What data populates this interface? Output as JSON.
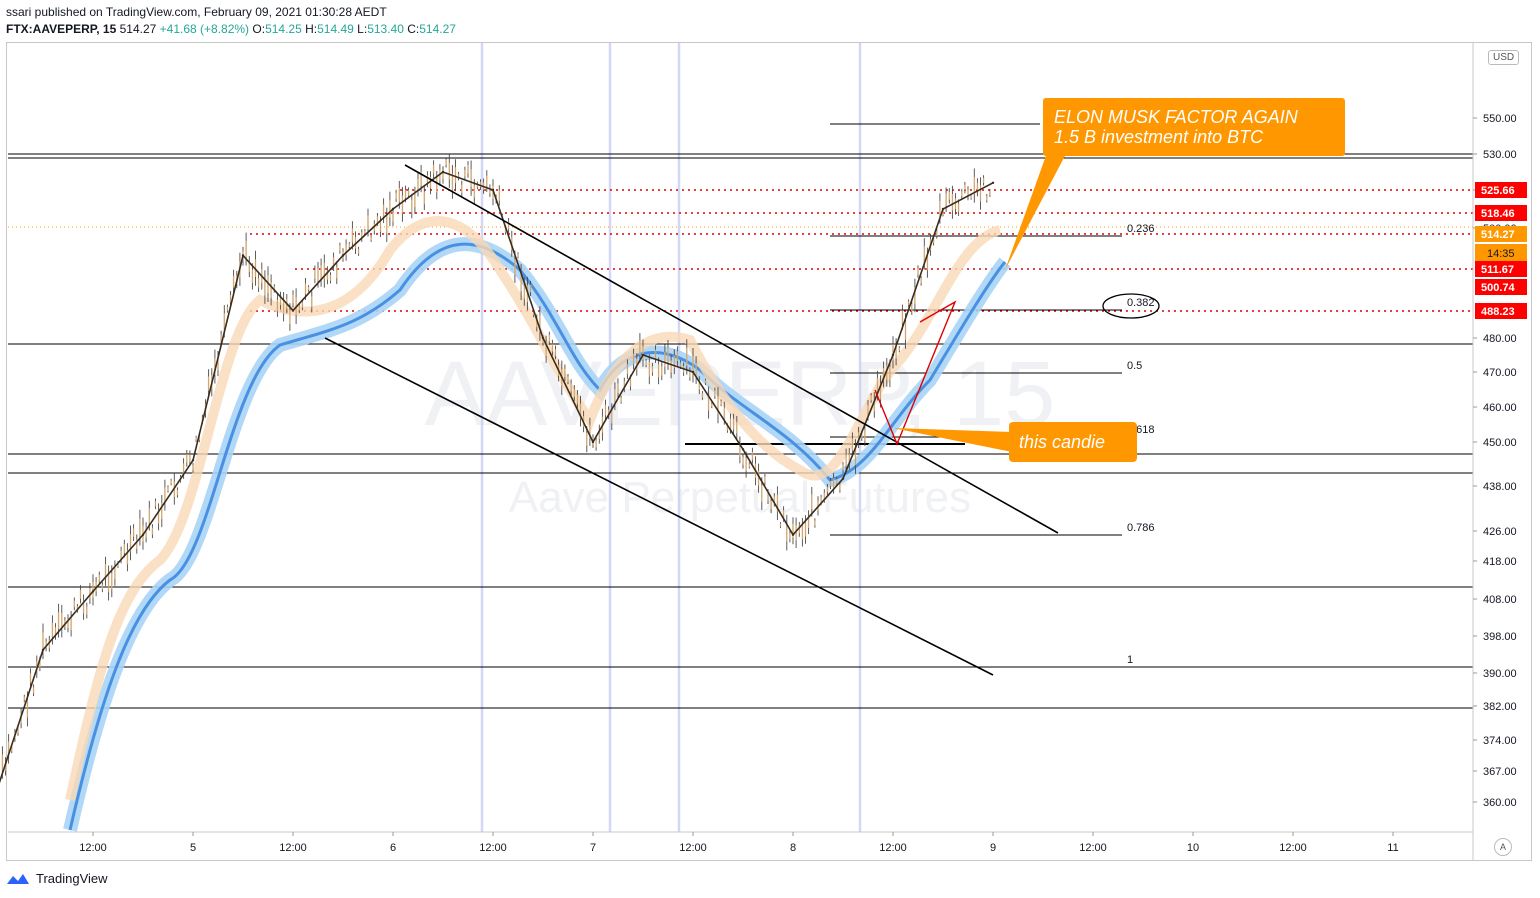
{
  "header": {
    "publisher": "ssari published on TradingView.com, February 09, 2021 01:30:28 AEDT",
    "symbol": "FTX:AAVEPERP, 15",
    "last": "514.27",
    "change": "+41.68 (+8.82%)",
    "o_label": "O:",
    "o": "514.25",
    "h_label": "H:",
    "h": "514.49",
    "l_label": "L:",
    "l": "513.40",
    "c_label": "C:",
    "c": "514.27"
  },
  "watermark": {
    "symbol": "AAVEPERP, 15",
    "name": "Aave Perpetual Futures"
  },
  "currency": "USD",
  "auto_label": "A",
  "footer": {
    "brand": "TradingView"
  },
  "chart_data": {
    "type": "line",
    "title": "FTX:AAVEPERP, 15",
    "x_ticks": [
      "12:00",
      "5",
      "12:00",
      "6",
      "12:00",
      "7",
      "12:00",
      "8",
      "12:00",
      "9",
      "12:00",
      "10",
      "12:00",
      "11"
    ],
    "y_ticks": [
      550,
      530,
      510,
      500,
      480,
      470,
      460,
      450,
      438,
      426,
      418,
      408,
      398,
      390,
      382,
      374,
      367,
      360
    ],
    "ylim": [
      354,
      560
    ],
    "series": [
      {
        "name": "",
        "color": "#000000",
        "x": [
          "4 00:00",
          "4 06:00",
          "4 12:00",
          "4 18:00",
          "5 00:00",
          "5 06:00",
          "5 12:00",
          "5 18:00",
          "6 00:00",
          "6 06:00",
          "6 12:00",
          "6 18:00",
          "7 00:00",
          "7 06:00",
          "7 12:00",
          "7 18:00",
          "8 00:00",
          "8 06:00",
          "8 12:00",
          "8 18:00",
          "9 00:00"
        ],
        "values": [
          360,
          395,
          410,
          425,
          445,
          495,
          485,
          495,
          505,
          520,
          510,
          480,
          450,
          475,
          470,
          448,
          425,
          440,
          475,
          505,
          514
        ]
      }
    ],
    "horizontal_price_tags": [
      {
        "price": 525.66,
        "label": "525.66",
        "color": "#ff0000"
      },
      {
        "price": 518.46,
        "label": "518.46",
        "color": "#ff0000"
      },
      {
        "price": 514.27,
        "label": "514.27",
        "color": "#ff9800"
      },
      {
        "price": 511.67,
        "label": "511.67",
        "color": "#ff0000"
      },
      {
        "price": 500.74,
        "label": "500.74",
        "color": "#ff0000"
      },
      {
        "price": 488.23,
        "label": "488.23",
        "color": "#ff0000"
      }
    ],
    "countdown": "14:35",
    "fib_levels": [
      {
        "label": "0.236"
      },
      {
        "label": "0.382"
      },
      {
        "label": "0.5"
      },
      {
        "label": "0.618"
      },
      {
        "label": "0.786"
      },
      {
        "label": "1"
      }
    ],
    "annotations": [
      {
        "text_line1": "ELON MUSK FACTOR AGAIN",
        "text_line2": "1.5 B investment into BTC"
      },
      {
        "text": "this candie"
      }
    ]
  }
}
